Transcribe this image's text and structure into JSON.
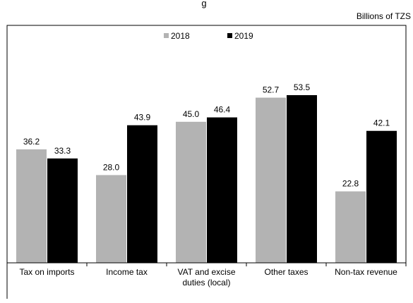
{
  "top_title": "g",
  "unit_label": "Billions of TZS",
  "chart_data": {
    "type": "bar",
    "title": "",
    "xlabel": "",
    "ylabel": "",
    "ylim": [
      0,
      58
    ],
    "grid": false,
    "legend_position": "top-center",
    "categories": [
      "Tax on imports",
      "Income tax",
      "VAT and excise duties (local)",
      "Other taxes",
      "Non-tax revenue"
    ],
    "category_label_lines": [
      [
        "Tax on imports"
      ],
      [
        "Income tax"
      ],
      [
        "VAT and excise",
        "duties (local)"
      ],
      [
        "Other taxes"
      ],
      [
        "Non-tax revenue"
      ]
    ],
    "series": [
      {
        "name": "2018",
        "color": "#b3b3b3",
        "values": [
          36.2,
          28.0,
          45.0,
          52.7,
          22.8
        ],
        "labels": [
          "36.2",
          "28.0",
          "45.0",
          "52.7",
          "22.8"
        ]
      },
      {
        "name": "2019",
        "color": "#000000",
        "values": [
          33.3,
          43.9,
          46.4,
          53.5,
          42.1
        ],
        "labels": [
          "33.3",
          "43.9",
          "46.4",
          "53.5",
          "42.1"
        ]
      }
    ]
  }
}
